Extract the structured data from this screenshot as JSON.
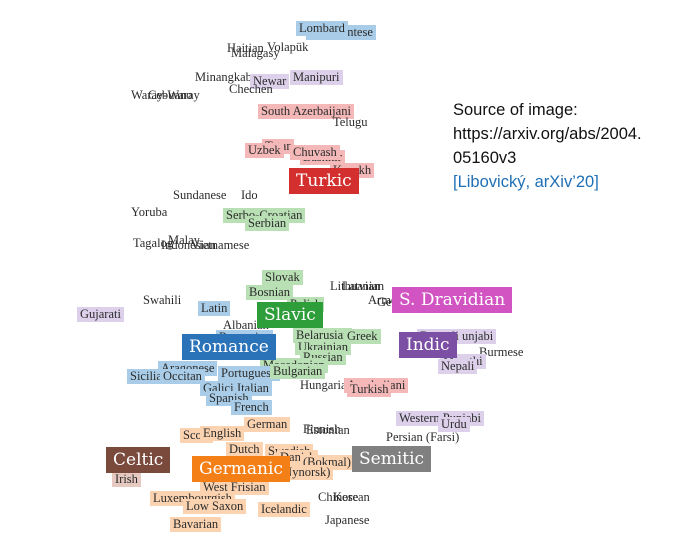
{
  "colors": {
    "turkic": "#d32f2f",
    "slavic": "#2e9e3a",
    "romance": "#2a73b8",
    "germanic": "#f57f17",
    "indic": "#7b4fa3",
    "s_dravidian": "#d154c2",
    "celtic": "#7a4a3d",
    "semitic": "#808080"
  },
  "caption": {
    "source_line1": "Source of image:",
    "source_line2": "https://arxiv.org/abs/2004.",
    "source_line3": "05160v3",
    "reference": "[Libovický, arXiv’20]"
  },
  "families": [
    {
      "label": "Turkic",
      "color": "#d32f2f"
    },
    {
      "label": "Slavic",
      "color": "#2e9e3a"
    },
    {
      "label": "S. Dravidian",
      "color": "#d154c2"
    },
    {
      "label": "Romance",
      "color": "#2a73b8"
    },
    {
      "label": "Indic",
      "color": "#7b4fa3"
    },
    {
      "label": "Celtic",
      "color": "#7a4a3d"
    },
    {
      "label": "Germanic",
      "color": "#f57f17"
    },
    {
      "label": "Semitic",
      "color": "#808080"
    }
  ],
  "languages": [
    {
      "label": "Piedmontese",
      "bg": "#a9cde8"
    },
    {
      "label": "Lombard",
      "bg": "#a9cde8"
    },
    {
      "label": "Volapük",
      "bg": ""
    },
    {
      "label": "Malagasy",
      "bg": ""
    },
    {
      "label": "Haitian",
      "bg": ""
    },
    {
      "label": "Minangkabau",
      "bg": ""
    },
    {
      "label": "Newar",
      "bg": "#dcd0ea"
    },
    {
      "label": "Manipuri",
      "bg": "#dcd0ea"
    },
    {
      "label": "Chechen",
      "bg": ""
    },
    {
      "label": "Waray-Waray",
      "bg": ""
    },
    {
      "label": "Cebuano",
      "bg": ""
    },
    {
      "label": "South Azerbaijani",
      "bg": "#f4b8b8"
    },
    {
      "label": "Telugu",
      "bg": ""
    },
    {
      "label": "Tatar",
      "bg": "#f4b8b8"
    },
    {
      "label": "Bashkir",
      "bg": "#f4b8b8"
    },
    {
      "label": "Uzbek",
      "bg": "#f4b8b8"
    },
    {
      "label": "Chuvash",
      "bg": "#f4b8b8"
    },
    {
      "label": "Kazakh",
      "bg": "#f4b8b8"
    },
    {
      "label": "Sundanese",
      "bg": ""
    },
    {
      "label": "Ido",
      "bg": ""
    },
    {
      "label": "Yoruba",
      "bg": ""
    },
    {
      "label": "Serbo-Croatian",
      "bg": "#b9e0b4"
    },
    {
      "label": "Serbian",
      "bg": "#b9e0b4"
    },
    {
      "label": "Tagalog",
      "bg": ""
    },
    {
      "label": "Malay",
      "bg": ""
    },
    {
      "label": "Indonesian",
      "bg": ""
    },
    {
      "label": "Vietnamese",
      "bg": ""
    },
    {
      "label": "Slovak",
      "bg": "#b9e0b4"
    },
    {
      "label": "Lithuanian",
      "bg": ""
    },
    {
      "label": "Latvian",
      "bg": ""
    },
    {
      "label": "Bosnian",
      "bg": "#b9e0b4"
    },
    {
      "label": "Polish",
      "bg": "#b9e0b4"
    },
    {
      "label": "Swahili",
      "bg": ""
    },
    {
      "label": "Armenian",
      "bg": ""
    },
    {
      "label": "Georgian",
      "bg": ""
    },
    {
      "label": "Gujarati",
      "bg": "#dcd0ea"
    },
    {
      "label": "Latin",
      "bg": "#a9cde8"
    },
    {
      "label": "Albanian",
      "bg": ""
    },
    {
      "label": "Romanian",
      "bg": "#a9cde8"
    },
    {
      "label": "Belarusian",
      "bg": "#b9e0b4"
    },
    {
      "label": "Greek",
      "bg": "#b9e0b4"
    },
    {
      "label": "Punjabi",
      "bg": "#dcd0ea"
    },
    {
      "label": "Bengali",
      "bg": "#dcd0ea"
    },
    {
      "label": "Ukrainian",
      "bg": "#b9e0b4"
    },
    {
      "label": "Burmese",
      "bg": ""
    },
    {
      "label": "Russian",
      "bg": "#b9e0b4"
    },
    {
      "label": "Marathi",
      "bg": "#dcd0ea"
    },
    {
      "label": "Nepali",
      "bg": "#dcd0ea"
    },
    {
      "label": "Aragonese",
      "bg": "#a9cde8"
    },
    {
      "label": "Macedonian",
      "bg": "#b9e0b4"
    },
    {
      "label": "Portuguese",
      "bg": "#a9cde8"
    },
    {
      "label": "Bulgarian",
      "bg": "#b9e0b4"
    },
    {
      "label": "Sicilian",
      "bg": "#a9cde8"
    },
    {
      "label": "Occitan",
      "bg": "#a9cde8"
    },
    {
      "label": "Hungarian",
      "bg": ""
    },
    {
      "label": "Azerbaijani",
      "bg": "#f4b8b8"
    },
    {
      "label": "Turkish",
      "bg": "#f4b8b8"
    },
    {
      "label": "Galician",
      "bg": "#a9cde8"
    },
    {
      "label": "Italian",
      "bg": "#a9cde8"
    },
    {
      "label": "Spanish",
      "bg": "#a9cde8"
    },
    {
      "label": "French",
      "bg": "#a9cde8"
    },
    {
      "label": "Western Punjabi",
      "bg": "#dcd0ea"
    },
    {
      "label": "Urdu",
      "bg": "#dcd0ea"
    },
    {
      "label": "German",
      "bg": "#fbd3b0"
    },
    {
      "label": "Estonian",
      "bg": ""
    },
    {
      "label": "Finnish",
      "bg": ""
    },
    {
      "label": "Scots",
      "bg": "#fbd3b0"
    },
    {
      "label": "English",
      "bg": "#fbd3b0"
    },
    {
      "label": "Persian (Farsi)",
      "bg": ""
    },
    {
      "label": "Dutch",
      "bg": "#fbd3b0"
    },
    {
      "label": "Swedish",
      "bg": "#fbd3b0"
    },
    {
      "label": "Danish",
      "bg": "#fbd3b0"
    },
    {
      "label": "(Bokmal)",
      "bg": "#fbd3b0"
    },
    {
      "label": "(Nynorsk)",
      "bg": "#fbd3b0"
    },
    {
      "label": "Irish",
      "bg": "#e6c9c0"
    },
    {
      "label": "West Frisian",
      "bg": "#fbd3b0"
    },
    {
      "label": "Luxembourgish",
      "bg": "#fbd3b0"
    },
    {
      "label": "Chinese",
      "bg": ""
    },
    {
      "label": "Korean",
      "bg": ""
    },
    {
      "label": "Low Saxon",
      "bg": "#fbd3b0"
    },
    {
      "label": "Icelandic",
      "bg": "#fbd3b0"
    },
    {
      "label": "Japanese",
      "bg": ""
    },
    {
      "label": "Bavarian",
      "bg": "#fbd3b0"
    }
  ]
}
